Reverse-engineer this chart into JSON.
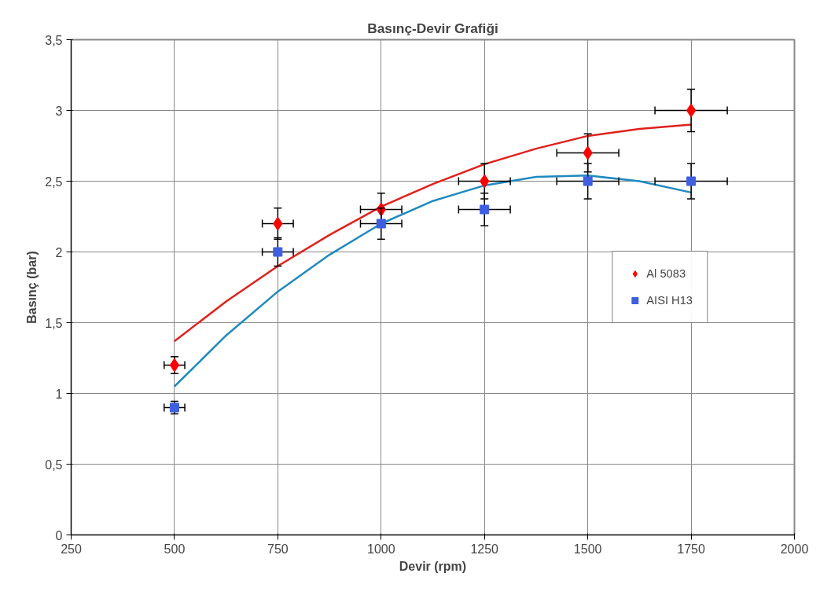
{
  "chart_data": {
    "type": "scatter",
    "title": "Basınç-Devir Grafiği",
    "xlabel": "Devir (rpm)",
    "ylabel": "Basınç (bar)",
    "xlim": [
      250,
      2000
    ],
    "xticks": [
      250,
      500,
      750,
      1000,
      1250,
      1500,
      1750,
      2000
    ],
    "ylim": [
      0,
      3.5
    ],
    "yticks": [
      0,
      {
        "value": 0.5,
        "label": "0,5"
      },
      1,
      {
        "value": 1.5,
        "label": "1,5"
      },
      2,
      {
        "value": 2.5,
        "label": "2,5"
      },
      3,
      {
        "value": 3.5,
        "label": "3,5"
      }
    ],
    "grid": true,
    "legend": "right",
    "series": [
      {
        "name": "Al 5083",
        "marker": "diamond",
        "color": "#ff0000",
        "x": [
          500,
          750,
          1000,
          1250,
          1500,
          1750
        ],
        "values": [
          1.2,
          2.2,
          2.3,
          2.5,
          2.7,
          3.0
        ],
        "errors": [
          0.06,
          0.11,
          0.115,
          0.125,
          0.135,
          0.15
        ],
        "xerrors": [
          25,
          37.5,
          50,
          62.5,
          75,
          87.5
        ]
      },
      {
        "name": "AISI H13",
        "marker": "square",
        "color": "#3d5fe0",
        "x": [
          500,
          750,
          1000,
          1250,
          1500,
          1750
        ],
        "values": [
          0.9,
          2.0,
          2.2,
          2.3,
          2.5,
          2.5
        ],
        "errors": [
          0.045,
          0.1,
          0.11,
          0.115,
          0.125,
          0.125
        ],
        "xerrors": [
          25,
          37.5,
          50,
          62.5,
          75,
          87.5
        ]
      },
      {
        "type": "line",
        "color": "#e0201b",
        "x": [
          500,
          625,
          750,
          875,
          1000,
          1125,
          1250,
          1375,
          1500,
          1625,
          1750
        ],
        "values": [
          1.37,
          1.65,
          1.9,
          2.12,
          2.32,
          2.48,
          2.62,
          2.73,
          2.82,
          2.87,
          2.9
        ]
      },
      {
        "type": "line",
        "color": "#1f8ac0",
        "x": [
          500,
          625,
          750,
          875,
          1000,
          1125,
          1250,
          1375,
          1500,
          1625,
          1750
        ],
        "values": [
          1.05,
          1.41,
          1.72,
          1.98,
          2.2,
          2.36,
          2.47,
          2.53,
          2.54,
          2.5,
          2.42
        ]
      }
    ]
  }
}
